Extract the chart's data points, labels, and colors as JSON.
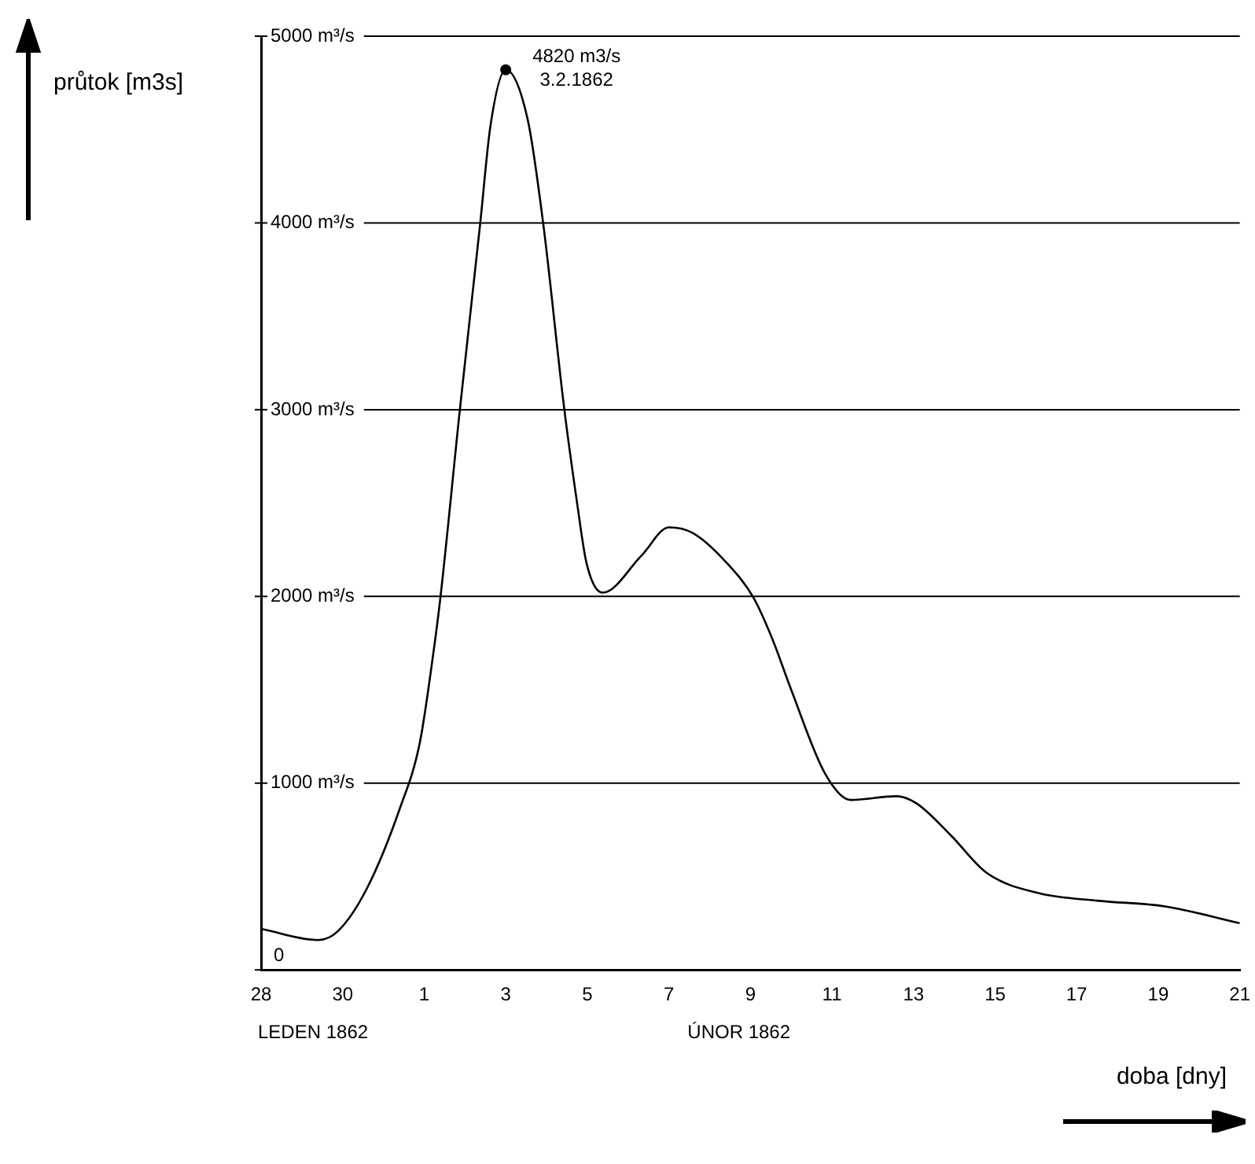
{
  "chart_data": {
    "type": "line",
    "xlabel": "doba [dny]",
    "ylabel": "průtok [m3s]",
    "xlim": [
      "1862-01-28",
      "1862-02-21"
    ],
    "xticks": [
      {
        "value": "1862-01-28",
        "label": "28"
      },
      {
        "value": "1862-01-30",
        "label": "30"
      },
      {
        "value": "1862-02-01",
        "label": "1"
      },
      {
        "value": "1862-02-03",
        "label": "3"
      },
      {
        "value": "1862-02-05",
        "label": "5"
      },
      {
        "value": "1862-02-07",
        "label": "7"
      },
      {
        "value": "1862-02-09",
        "label": "9"
      },
      {
        "value": "1862-02-11",
        "label": "11"
      },
      {
        "value": "1862-02-13",
        "label": "13"
      },
      {
        "value": "1862-02-15",
        "label": "15"
      },
      {
        "value": "1862-02-17",
        "label": "17"
      },
      {
        "value": "1862-02-19",
        "label": "19"
      },
      {
        "value": "1862-02-21",
        "label": "21"
      }
    ],
    "ylim": [
      0,
      5000
    ],
    "yticks": [
      0,
      {
        "value": 1000,
        "label": "1000 m³/s"
      },
      {
        "value": 2000,
        "label": "2000 m³/s"
      },
      {
        "value": 3000,
        "label": "3000 m³/s"
      },
      {
        "value": 4000,
        "label": "4000 m³/s"
      },
      {
        "value": 5000,
        "label": "5000 m³/s"
      }
    ],
    "grid": "y",
    "series": [
      {
        "type": "line",
        "color": "#000000",
        "marker": "none",
        "x": [
          "1862-01-28T00:00",
          "1862-01-29T09:30",
          "1862-01-29T21:30",
          "1862-01-30T14:30",
          "1862-01-31T09:30",
          "1862-01-31T21:30",
          "1862-02-01T05:00",
          "1862-02-01T09:30",
          "1862-02-01T21:00",
          "1862-02-02T09:00",
          "1862-02-02T15:00",
          "1862-02-03T00:00",
          "1862-02-03T13:00",
          "1862-02-03T22:00",
          "1862-02-04T10:30",
          "1862-02-04T18:00",
          "1862-02-04T23:30",
          "1862-02-05T09:00",
          "1862-02-06T08:00",
          "1862-02-07T00:00",
          "1862-02-07T14:00",
          "1862-02-08T10:00",
          "1862-02-09T02:00",
          "1862-02-09T13:00",
          "1862-02-10T00:00",
          "1862-02-10T20:00",
          "1862-02-11T11:00",
          "1862-02-12T14:00",
          "1862-02-13T02:00",
          "1862-02-13T22:00",
          "1862-02-14T19:00",
          "1862-02-16T02:00",
          "1862-02-17T13:00",
          "1862-02-19T04:00",
          "1862-02-21T00:00"
        ],
        "values": [
          220,
          160,
          210,
          440,
          860,
          1220,
          1670,
          1990,
          3000,
          4000,
          4520,
          4820,
          4550,
          4000,
          3000,
          2500,
          2180,
          2020,
          2220,
          2370,
          2340,
          2180,
          1990,
          1770,
          1500,
          1050,
          910,
          930,
          890,
          720,
          520,
          410,
          370,
          340,
          250
        ]
      },
      {
        "type": "scatter",
        "color": "#000000",
        "marker": "circle",
        "x": [
          "1862-02-03"
        ],
        "values": [
          4820
        ]
      }
    ],
    "annotations": [
      {
        "text": "4820 m3/s\n3.2.1862",
        "x": "1862-02-03",
        "y": 4820
      },
      "LEDEN 1862",
      "ÚNOR 1862"
    ]
  }
}
